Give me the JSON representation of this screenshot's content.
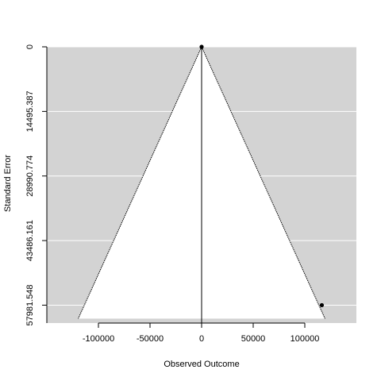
{
  "chart_data": {
    "type": "scatter",
    "subtype": "funnel",
    "xlabel": "Observed Outcome",
    "ylabel": "Standard Error",
    "xlim": [
      -150000,
      150000
    ],
    "ylim": [
      0,
      62000
    ],
    "y_reversed": true,
    "x_ticks": [
      -100000,
      -50000,
      0,
      50000,
      100000
    ],
    "x_tick_labels": [
      "-100000",
      "-50000",
      "0",
      "50000",
      "100000"
    ],
    "y_ticks": [
      0,
      14495.387,
      28990.774,
      43486.161,
      57981.548
    ],
    "y_tick_labels": [
      "0",
      "14495.387",
      "28990.774",
      "43486.161",
      "57981.548"
    ],
    "funnel": {
      "center": 0,
      "max_se": 61000,
      "z": 1.96
    },
    "reference_line_x": 0,
    "points": [
      {
        "x": 0,
        "y": 0
      },
      {
        "x": 116500,
        "y": 57981.548
      }
    ],
    "colors": {
      "background": "#d3d3d3",
      "funnel": "#ffffff",
      "grid": "#ffffff",
      "points": "#000000"
    },
    "grid": true
  }
}
